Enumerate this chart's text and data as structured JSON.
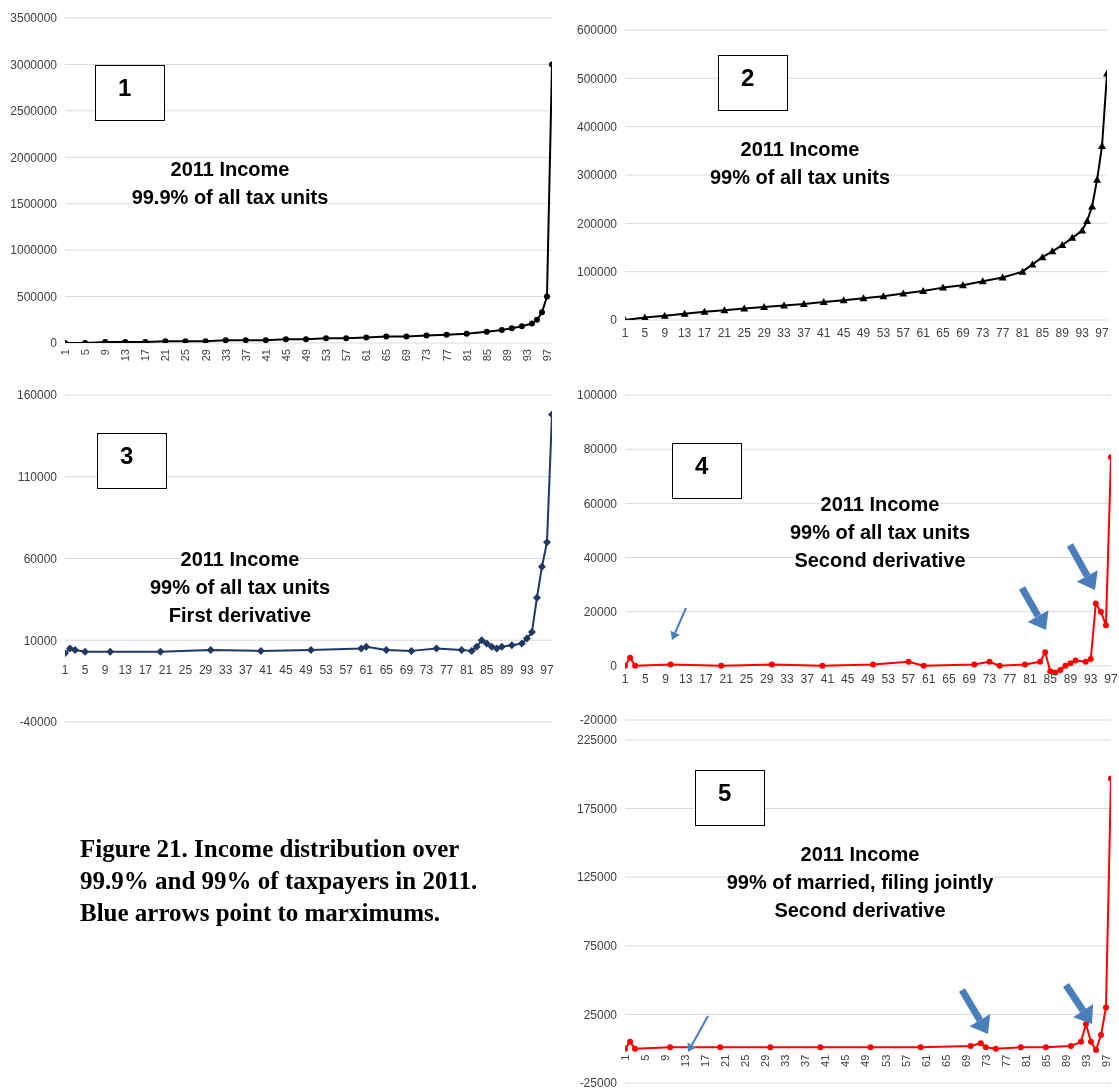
{
  "chart_data": [
    {
      "type": "line",
      "title": "2011 Income",
      "subtitle": "99.9% of all tax units",
      "annotations": [
        "1"
      ],
      "color": "#000000",
      "marker": "circle",
      "grid": "y",
      "x": [
        1,
        5,
        9,
        13,
        17,
        21,
        25,
        29,
        33,
        37,
        41,
        45,
        49,
        53,
        57,
        61,
        65,
        69,
        73,
        77,
        81,
        85,
        88,
        90,
        92,
        94,
        95,
        96,
        97,
        98
      ],
      "values": [
        0,
        0,
        10000,
        10000,
        10000,
        20000,
        20000,
        20000,
        30000,
        30000,
        30000,
        40000,
        40000,
        50000,
        50000,
        60000,
        70000,
        70000,
        80000,
        90000,
        100000,
        120000,
        140000,
        160000,
        180000,
        210000,
        250000,
        330000,
        500000,
        3000000
      ],
      "xlim": [
        1,
        98
      ],
      "xticks": [
        1,
        5,
        9,
        13,
        17,
        21,
        25,
        29,
        33,
        37,
        41,
        45,
        49,
        53,
        57,
        61,
        65,
        69,
        73,
        77,
        81,
        85,
        89,
        93,
        97
      ],
      "ylim": [
        0,
        3500000
      ],
      "yticks": [
        0,
        500000,
        1000000,
        1500000,
        2000000,
        2500000,
        3000000,
        3500000
      ]
    },
    {
      "type": "line",
      "title": "2011 Income",
      "subtitle": "99% of all tax units",
      "annotations": [
        "2"
      ],
      "color": "#000000",
      "marker": "triangle",
      "grid": "y",
      "x": [
        1,
        5,
        9,
        13,
        17,
        21,
        25,
        29,
        33,
        37,
        41,
        45,
        49,
        53,
        57,
        61,
        65,
        69,
        73,
        77,
        81,
        83,
        85,
        87,
        89,
        91,
        93,
        94,
        95,
        96,
        97,
        98
      ],
      "values": [
        0,
        5000,
        9000,
        13000,
        17000,
        20000,
        24000,
        27000,
        30000,
        33000,
        37000,
        41000,
        45000,
        49000,
        55000,
        60000,
        67000,
        72000,
        80000,
        88000,
        100000,
        115000,
        130000,
        142000,
        155000,
        170000,
        185000,
        205000,
        235000,
        290000,
        360000,
        510000
      ],
      "xlim": [
        1,
        98
      ],
      "xticks": [
        1,
        5,
        9,
        13,
        17,
        21,
        25,
        29,
        33,
        37,
        41,
        45,
        49,
        53,
        57,
        61,
        65,
        69,
        73,
        77,
        81,
        85,
        89,
        93,
        97
      ],
      "ylim": [
        0,
        600000
      ],
      "yticks": [
        0,
        100000,
        200000,
        300000,
        400000,
        500000,
        600000
      ]
    },
    {
      "type": "line",
      "title": "2011 Income",
      "subtitle": "99% of all tax units",
      "annotations": [
        "3",
        "First derivative"
      ],
      "color": "#1f3864",
      "marker": "diamond",
      "grid": "y",
      "x": [
        1,
        2,
        3,
        5,
        10,
        20,
        30,
        40,
        50,
        60,
        61,
        65,
        70,
        75,
        80,
        82,
        83,
        84,
        85,
        86,
        87,
        88,
        90,
        92,
        93,
        94,
        95,
        96,
        97,
        98
      ],
      "values": [
        2000,
        5000,
        4000,
        3000,
        3000,
        3000,
        4000,
        3500,
        4000,
        5000,
        6000,
        4000,
        3500,
        5000,
        4000,
        3500,
        6000,
        10000,
        8000,
        6000,
        5000,
        6000,
        7000,
        8000,
        11000,
        15000,
        36000,
        55000,
        70000,
        148000
      ],
      "xlim": [
        1,
        98
      ],
      "xticks": [
        1,
        5,
        9,
        13,
        17,
        21,
        25,
        29,
        33,
        37,
        41,
        45,
        49,
        53,
        57,
        61,
        65,
        69,
        73,
        77,
        81,
        85,
        89,
        93,
        97
      ],
      "ylim": [
        -40000,
        160000
      ],
      "yticks": [
        -40000,
        10000,
        60000,
        110000,
        160000
      ]
    },
    {
      "type": "line",
      "title": "2011 Income",
      "subtitle": "99% of all tax units",
      "annotations": [
        "4",
        "Second derivative"
      ],
      "color": "#ff0000",
      "marker": "circle",
      "grid": "y",
      "x": [
        1,
        2,
        3,
        10,
        20,
        30,
        40,
        50,
        57,
        60,
        70,
        73,
        75,
        80,
        83,
        84,
        85,
        86,
        87,
        88,
        89,
        90,
        92,
        93,
        94,
        95,
        96,
        97
      ],
      "values": [
        0,
        3000,
        0,
        500,
        0,
        500,
        0,
        500,
        1500,
        0,
        500,
        1500,
        0,
        500,
        1500,
        5000,
        -2000,
        -2500,
        -1500,
        0,
        1000,
        2000,
        1500,
        2500,
        23000,
        20000,
        15000,
        77000
      ],
      "xlim": [
        1,
        97
      ],
      "xticks": [
        1,
        5,
        9,
        13,
        17,
        21,
        25,
        29,
        33,
        37,
        41,
        45,
        49,
        53,
        57,
        61,
        65,
        69,
        73,
        77,
        81,
        85,
        89,
        93,
        97
      ],
      "ylim": [
        -20000,
        100000
      ],
      "yticks": [
        -20000,
        0,
        20000,
        40000,
        60000,
        80000,
        100000
      ]
    },
    {
      "type": "line",
      "title": "2011 Income",
      "subtitle": "99% of married, filing jointly",
      "annotations": [
        "5",
        "Second derivative"
      ],
      "color": "#ff0000",
      "marker": "circle",
      "grid": "y",
      "x": [
        1,
        2,
        3,
        10,
        20,
        30,
        40,
        50,
        60,
        70,
        72,
        73,
        75,
        80,
        85,
        90,
        92,
        93,
        94,
        95,
        96,
        97,
        98
      ],
      "values": [
        0,
        5000,
        0,
        1000,
        1000,
        1000,
        1000,
        1000,
        1000,
        2000,
        4000,
        1000,
        0,
        1000,
        1000,
        2000,
        5000,
        18000,
        5000,
        -1000,
        10000,
        30000,
        197000
      ],
      "xlim": [
        1,
        98
      ],
      "xticks": [
        1,
        5,
        9,
        13,
        17,
        21,
        25,
        29,
        33,
        37,
        41,
        45,
        49,
        53,
        57,
        61,
        65,
        69,
        73,
        77,
        81,
        85,
        89,
        93,
        97
      ],
      "ylim": [
        -25000,
        225000
      ],
      "yticks": [
        -25000,
        25000,
        75000,
        125000,
        175000,
        225000
      ]
    },
    {
      "type": "other",
      "annotations": [
        "Figure 21. Income distribution over 99.9% and 99% of taxpayers in 2011. Blue arrows point to marximums."
      ]
    }
  ]
}
